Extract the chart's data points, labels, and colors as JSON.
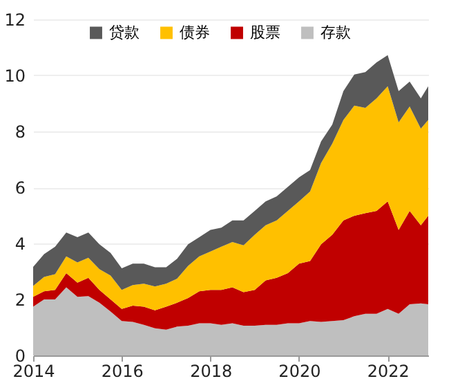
{
  "chart_data": {
    "type": "area",
    "stacked": true,
    "x": [
      "2014-01",
      "2014-04",
      "2014-07",
      "2014-10",
      "2015-01",
      "2015-04",
      "2015-07",
      "2015-10",
      "2016-01",
      "2016-04",
      "2016-07",
      "2016-10",
      "2017-01",
      "2017-04",
      "2017-07",
      "2017-10",
      "2018-01",
      "2018-04",
      "2018-07",
      "2018-10",
      "2019-01",
      "2019-04",
      "2019-07",
      "2019-10",
      "2020-01",
      "2020-04",
      "2020-07",
      "2020-10",
      "2021-01",
      "2021-04",
      "2021-07",
      "2021-10",
      "2022-01",
      "2022-04",
      "2022-07",
      "2022-10",
      "2022-12"
    ],
    "series": [
      {
        "name": "存款",
        "color": "#bfbfbf",
        "values": [
          1.74,
          2.0,
          2.0,
          2.43,
          2.09,
          2.12,
          1.88,
          1.57,
          1.23,
          1.2,
          1.09,
          0.97,
          0.92,
          1.03,
          1.06,
          1.15,
          1.15,
          1.09,
          1.15,
          1.06,
          1.06,
          1.09,
          1.09,
          1.15,
          1.15,
          1.23,
          1.2,
          1.23,
          1.26,
          1.4,
          1.49,
          1.49,
          1.66,
          1.49,
          1.83,
          1.86,
          1.83
        ]
      },
      {
        "name": "股票",
        "color": "#c00000",
        "values": [
          0.35,
          0.29,
          0.34,
          0.51,
          0.51,
          0.65,
          0.46,
          0.43,
          0.43,
          0.58,
          0.65,
          0.64,
          0.82,
          0.85,
          0.99,
          1.14,
          1.19,
          1.25,
          1.28,
          1.2,
          1.28,
          1.59,
          1.68,
          1.79,
          2.13,
          2.14,
          2.77,
          3.08,
          3.56,
          3.59,
          3.59,
          3.67,
          3.84,
          2.99,
          3.33,
          2.79,
          3.16
        ]
      },
      {
        "name": "债券",
        "color": "#ffc000",
        "values": [
          0.39,
          0.51,
          0.56,
          0.6,
          0.72,
          0.72,
          0.74,
          0.85,
          0.68,
          0.73,
          0.82,
          0.85,
          0.82,
          0.86,
          1.15,
          1.25,
          1.37,
          1.54,
          1.62,
          1.67,
          1.97,
          1.97,
          2.05,
          2.22,
          2.22,
          2.48,
          2.9,
          3.25,
          3.59,
          3.93,
          3.76,
          4.02,
          4.11,
          3.84,
          3.73,
          3.45,
          3.42
        ]
      },
      {
        "name": "贷款",
        "color": "#595959",
        "values": [
          0.68,
          0.82,
          0.98,
          0.85,
          0.9,
          0.9,
          0.89,
          0.81,
          0.77,
          0.77,
          0.72,
          0.69,
          0.59,
          0.71,
          0.77,
          0.68,
          0.77,
          0.68,
          0.77,
          0.89,
          0.85,
          0.85,
          0.86,
          0.86,
          0.86,
          0.77,
          0.77,
          0.68,
          1.03,
          1.11,
          1.28,
          1.28,
          1.11,
          1.12,
          0.89,
          1.08,
          1.2
        ]
      }
    ],
    "xlim": [
      "2014-01",
      "2022-12"
    ],
    "xticks": [
      "2014",
      "2016",
      "2018",
      "2020",
      "2022"
    ],
    "ylim": [
      0,
      12
    ],
    "yticks": [
      0,
      2,
      4,
      6,
      8,
      10,
      12
    ],
    "grid": "y",
    "legend": "top"
  }
}
